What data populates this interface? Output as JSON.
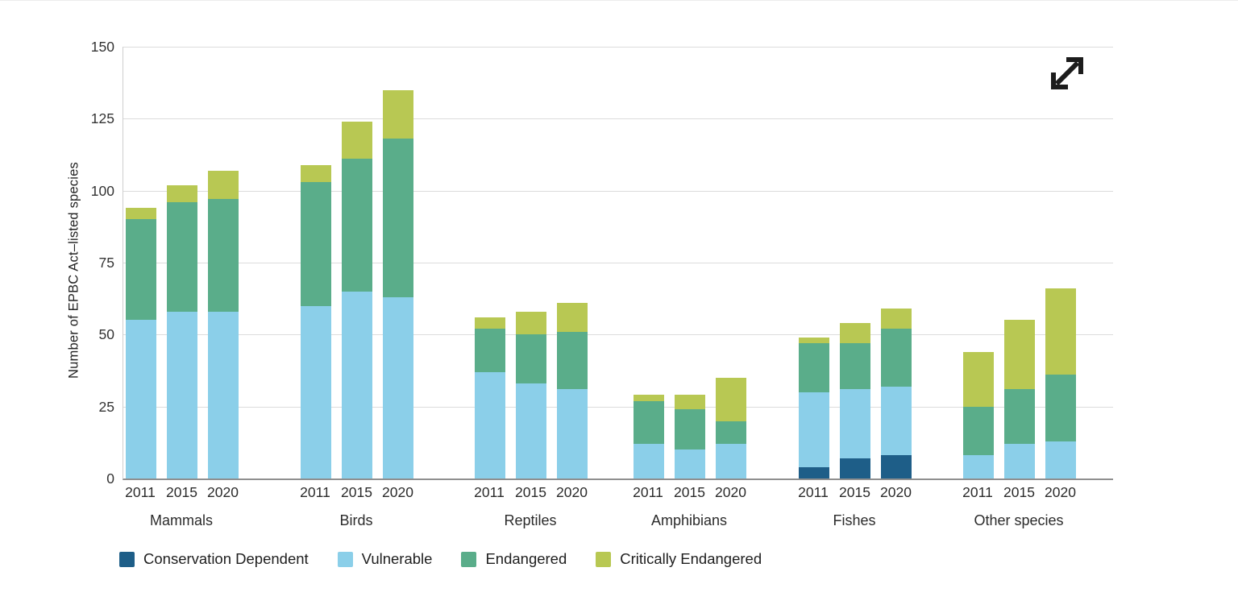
{
  "chart_data": {
    "type": "bar",
    "stacked": true,
    "ylabel": "Number of EPBC Act–listed species",
    "ylim": [
      0,
      150
    ],
    "yticks": [
      0,
      25,
      50,
      75,
      100,
      125,
      150
    ],
    "grid": true,
    "legend_position": "bottom",
    "groups": [
      "Mammals",
      "Birds",
      "Reptiles",
      "Amphibians",
      "Fishes",
      "Other species"
    ],
    "years": [
      "2011",
      "2015",
      "2020"
    ],
    "series": [
      {
        "name": "Conservation Dependent",
        "color": "#1e5e88",
        "values": [
          [
            0,
            0,
            0
          ],
          [
            0,
            0,
            0
          ],
          [
            0,
            0,
            0
          ],
          [
            0,
            0,
            0
          ],
          [
            4,
            7,
            8
          ],
          [
            0,
            0,
            0
          ]
        ]
      },
      {
        "name": "Vulnerable",
        "color": "#8bcfe9",
        "values": [
          [
            55,
            58,
            58
          ],
          [
            60,
            65,
            63
          ],
          [
            37,
            33,
            31
          ],
          [
            12,
            10,
            12
          ],
          [
            26,
            24,
            24
          ],
          [
            8,
            12,
            13
          ]
        ]
      },
      {
        "name": "Endangered",
        "color": "#5aad8a",
        "values": [
          [
            35,
            38,
            39
          ],
          [
            43,
            46,
            55
          ],
          [
            15,
            17,
            20
          ],
          [
            15,
            14,
            8
          ],
          [
            17,
            16,
            20
          ],
          [
            17,
            19,
            23
          ]
        ]
      },
      {
        "name": "Critically Endangered",
        "color": "#b8c853",
        "values": [
          [
            4,
            6,
            10
          ],
          [
            6,
            13,
            17
          ],
          [
            4,
            8,
            10
          ],
          [
            2,
            5,
            15
          ],
          [
            2,
            7,
            7
          ],
          [
            19,
            24,
            30
          ]
        ]
      }
    ],
    "totals": [
      [
        94,
        102,
        107
      ],
      [
        109,
        124,
        135
      ],
      [
        56,
        58,
        61
      ],
      [
        29,
        29,
        35
      ],
      [
        49,
        54,
        59
      ],
      [
        44,
        55,
        66
      ]
    ]
  },
  "icons": {
    "expand": "diagonal-resize-arrow"
  }
}
